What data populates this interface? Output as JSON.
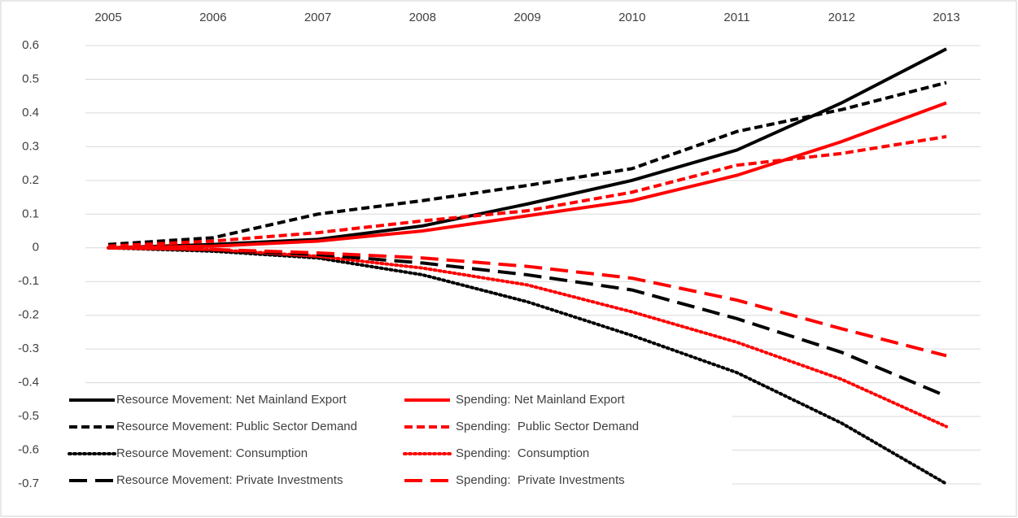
{
  "chart_data": {
    "type": "line",
    "categories": [
      "2005",
      "2006",
      "2007",
      "2008",
      "2009",
      "2010",
      "2011",
      "2012",
      "2013"
    ],
    "ylim": [
      -0.7,
      0.6
    ],
    "yticks": [
      -0.7,
      -0.6,
      -0.5,
      -0.4,
      -0.3,
      -0.2,
      -0.1,
      0,
      0.1,
      0.2,
      0.3,
      0.4,
      0.5,
      0.6
    ],
    "grid": true,
    "legend": "bottom-left",
    "series": [
      {
        "name": "Resource Movement: Net Mainland Export",
        "color": "#000000",
        "style": "solid",
        "values": [
          0,
          0.01,
          0.025,
          0.065,
          0.13,
          0.2,
          0.29,
          0.43,
          0.59
        ]
      },
      {
        "name": "Spending: Net Mainland Export",
        "color": "#ff0000",
        "style": "solid",
        "values": [
          0,
          0.005,
          0.02,
          0.05,
          0.095,
          0.14,
          0.215,
          0.315,
          0.43
        ]
      },
      {
        "name": "Resource Movement: Public Sector Demand",
        "color": "#000000",
        "style": "dashed",
        "values": [
          0.01,
          0.03,
          0.1,
          0.14,
          0.185,
          0.235,
          0.345,
          0.41,
          0.49
        ]
      },
      {
        "name": "Spending:  Public Sector Demand",
        "color": "#ff0000",
        "style": "dashed",
        "values": [
          0.005,
          0.02,
          0.045,
          0.08,
          0.11,
          0.165,
          0.245,
          0.28,
          0.33
        ]
      },
      {
        "name": "Resource Movement: Consumption",
        "color": "#000000",
        "style": "dotted",
        "values": [
          0,
          -0.01,
          -0.03,
          -0.08,
          -0.16,
          -0.26,
          -0.37,
          -0.52,
          -0.7
        ]
      },
      {
        "name": "Spending:  Consumption",
        "color": "#ff0000",
        "style": "dotted",
        "values": [
          0,
          -0.005,
          -0.025,
          -0.06,
          -0.11,
          -0.19,
          -0.28,
          -0.39,
          -0.53
        ]
      },
      {
        "name": "Resource Movement: Private Investments",
        "color": "#000000",
        "style": "longdash",
        "values": [
          0,
          -0.005,
          -0.02,
          -0.045,
          -0.08,
          -0.125,
          -0.21,
          -0.31,
          -0.44
        ]
      },
      {
        "name": "Spending:  Private Investments",
        "color": "#ff0000",
        "style": "longdash",
        "values": [
          0,
          -0.005,
          -0.015,
          -0.03,
          -0.055,
          -0.09,
          -0.155,
          -0.24,
          -0.32
        ]
      }
    ]
  }
}
